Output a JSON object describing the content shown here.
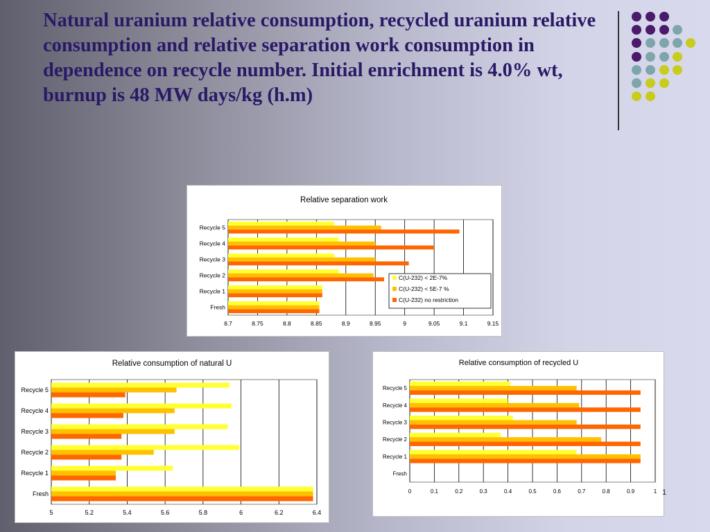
{
  "slide": {
    "title": "Natural uranium relative consumption, recycled uranium relative consumption and relative separation work consumption in dependence on recycle number. Initial enrichment is  4.0% wt, burnup is 48 MW days/kg (h.m)",
    "page_number": "1"
  },
  "decoration": {
    "colors": {
      "purple": "#4a1a6b",
      "teal": "#7ea6aa",
      "yellow": "#c8cc1e"
    }
  },
  "chart_data": [
    {
      "type": "bar",
      "orientation": "horizontal",
      "title": "Relative separation work",
      "categories": [
        "Fresh",
        "Recycle 1",
        "Recycle 2",
        "Recycle 3",
        "Recycle 4",
        "Recycle 5"
      ],
      "series": [
        {
          "name": "C(U-232) < 2E-7%",
          "color": "#ffff33",
          "values": [
            8.855,
            8.86,
            8.888,
            8.88,
            8.888,
            8.88
          ]
        },
        {
          "name": "C(U-232) < 5E-7 %",
          "color": "#ffc000",
          "values": [
            8.855,
            8.86,
            8.947,
            8.95,
            8.95,
            8.96
          ]
        },
        {
          "name": "C(U-232) no restriction",
          "color": "#ff6600",
          "values": [
            8.855,
            8.86,
            8.965,
            9.007,
            9.05,
            9.093
          ]
        }
      ],
      "xlim": [
        8.7,
        9.15
      ],
      "xticks": [
        "8.7",
        "8.75",
        "8.8",
        "8.85",
        "8.9",
        "8.95",
        "9",
        "9.05",
        "9.1",
        "9.15"
      ],
      "legend": "right",
      "grid": "vertical"
    },
    {
      "type": "bar",
      "orientation": "horizontal",
      "title": "Relative consumption of natural U",
      "categories": [
        "Fresh",
        "Recycle 1",
        "Recycle 2",
        "Recycle 3",
        "Recycle 4",
        "Recycle 5"
      ],
      "series": [
        {
          "color": "#ffff33",
          "values": [
            6.38,
            5.64,
            5.99,
            5.93,
            5.95,
            5.94
          ]
        },
        {
          "color": "#ffc000",
          "values": [
            6.38,
            5.34,
            5.54,
            5.65,
            5.65,
            5.66
          ]
        },
        {
          "color": "#ff6600",
          "values": [
            6.38,
            5.34,
            5.37,
            5.37,
            5.38,
            5.39
          ]
        }
      ],
      "xlim": [
        5,
        6.4
      ],
      "xticks": [
        "5",
        "5.2",
        "5.4",
        "5.6",
        "5.8",
        "6",
        "6.2",
        "6.4"
      ],
      "grid": "vertical"
    },
    {
      "type": "bar",
      "orientation": "horizontal",
      "title": "Relative consumption of recycled U",
      "categories": [
        "Fresh",
        "Recycle 1",
        "Recycle 2",
        "Recycle 3",
        "Recycle 4",
        "Recycle 5"
      ],
      "series": [
        {
          "color": "#ffff33",
          "values": [
            0,
            0.68,
            0.37,
            0.42,
            0.4,
            0.41
          ]
        },
        {
          "color": "#ffc000",
          "values": [
            0,
            0.94,
            0.78,
            0.68,
            0.69,
            0.68
          ]
        },
        {
          "color": "#ff6600",
          "values": [
            0,
            0.94,
            0.94,
            0.94,
            0.94,
            0.94
          ]
        }
      ],
      "xlim": [
        0,
        1
      ],
      "xticks": [
        "0",
        "0.1",
        "0.2",
        "0.3",
        "0.4",
        "0.5",
        "0.6",
        "0.7",
        "0.8",
        "0.9",
        "1"
      ],
      "grid": "vertical"
    }
  ]
}
